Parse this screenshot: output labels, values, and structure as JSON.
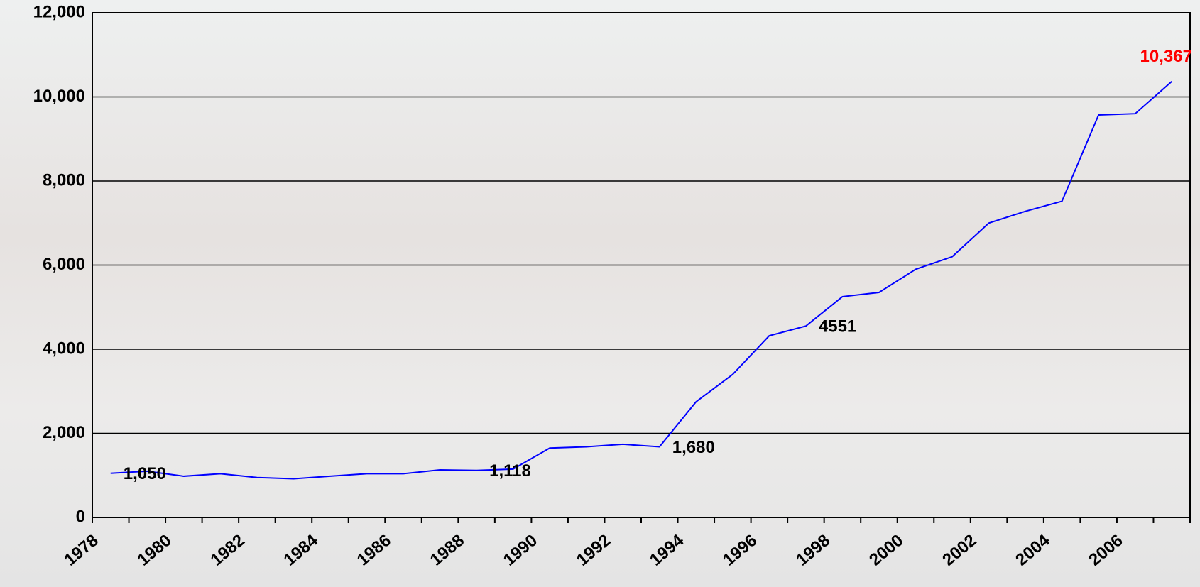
{
  "chart_data": {
    "type": "line",
    "categories": [
      "1978",
      null,
      "1980",
      null,
      "1982",
      null,
      "1984",
      null,
      "1986",
      null,
      "1988",
      null,
      "1990",
      null,
      "1992",
      null,
      "1994",
      null,
      "1996",
      null,
      "1998",
      null,
      "2000",
      null,
      "2002",
      null,
      "2004",
      null,
      "2006",
      null
    ],
    "series": [
      {
        "color": "#0000ff",
        "values": [
          1050,
          1100,
          980,
          1040,
          950,
          920,
          980,
          1040,
          1040,
          1130,
          1118,
          1150,
          1650,
          1680,
          1740,
          1680,
          2750,
          3400,
          4320,
          4551,
          5250,
          5350,
          5900,
          6200,
          7000,
          7280,
          7520,
          9570,
          9600,
          10367
        ],
        "value_labels": [
          "1,050",
          null,
          null,
          null,
          null,
          null,
          null,
          null,
          null,
          null,
          "1,118",
          null,
          null,
          null,
          null,
          "1,680",
          null,
          null,
          null,
          "4551",
          null,
          null,
          null,
          null,
          null,
          null,
          null,
          null,
          null,
          "10,367"
        ],
        "label_colors": [
          "#000000",
          null,
          null,
          null,
          null,
          null,
          null,
          null,
          null,
          null,
          "#000000",
          null,
          null,
          null,
          null,
          "#000000",
          null,
          null,
          null,
          "#000000",
          null,
          null,
          null,
          null,
          null,
          null,
          null,
          null,
          null,
          "#ff0000"
        ]
      }
    ],
    "ylim": [
      0,
      12000
    ],
    "yticks": [
      0,
      {
        "value": 2000,
        "label": "2,000"
      },
      {
        "value": 4000,
        "label": "4,000"
      },
      {
        "value": 6000,
        "label": "6,000"
      },
      {
        "value": 8000,
        "label": "8,000"
      },
      {
        "value": 10000,
        "label": "10,000"
      },
      {
        "value": 12000,
        "label": "12,000"
      }
    ],
    "grid": true
  }
}
